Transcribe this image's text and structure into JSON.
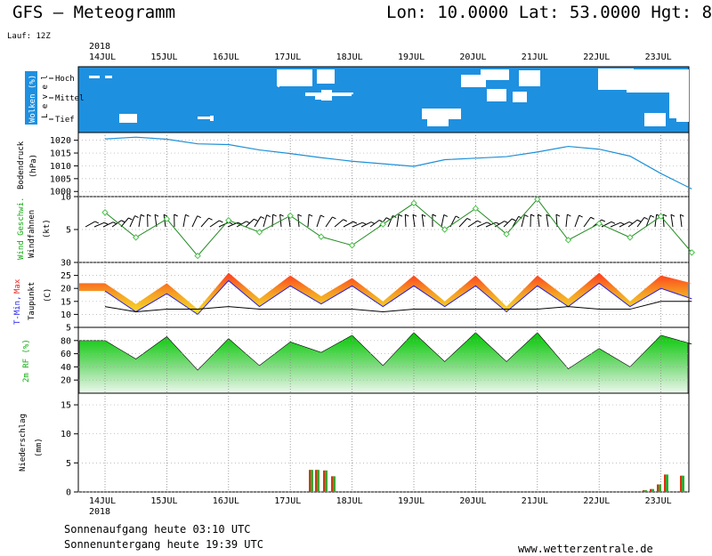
{
  "header": {
    "model": "GFS – Meteogramm",
    "location": "Lon: 10.0000  Lat: 53.0000  Hgt: 8",
    "run": "Lauf: 12Z",
    "year": "2018"
  },
  "days": [
    "14JUL",
    "15JUL",
    "16JUL",
    "17JUL",
    "18JUL",
    "19JUL",
    "20JUL",
    "21JUL",
    "22JUL",
    "23JUL"
  ],
  "panels": {
    "clouds": {
      "label": "Wolken (%)",
      "level_label": "L e v e l",
      "levels": [
        "Hoch",
        "Mittel",
        "Tief"
      ]
    },
    "pressure": {
      "label": "Bodendruck",
      "unit": "(hPa)",
      "ticks": [
        "1020",
        "1015",
        "1010",
        "1005",
        "1000"
      ]
    },
    "wind": {
      "label_speed": "Wind Geschwi.",
      "label_barbs": "Windfahnen",
      "unit": "(kt)",
      "ticks": [
        "10",
        "5"
      ]
    },
    "temperature": {
      "label_tmin": "T-Min,",
      "label_tmax": "Max",
      "label_dew": "Taupunkt",
      "unit": "(C)",
      "ticks": [
        "30",
        "25",
        "20",
        "15",
        "10",
        "5"
      ]
    },
    "humidity": {
      "label": "2m RF (%)",
      "ticks": [
        "80",
        "60",
        "40",
        "20"
      ]
    },
    "precipitation": {
      "label": "Niederschlag",
      "unit": "(mm)",
      "ticks": [
        "15",
        "10",
        "5",
        "0"
      ]
    }
  },
  "footer": {
    "sunrise": "Sonnenaufgang heute 03:10 UTC",
    "sunset": "Sonnenuntergang heute 19:39 UTC",
    "source": "www.wetterzentrale.de"
  },
  "colors": {
    "cloud_sky": "#1e90e0",
    "cloud_white": "#ffffff",
    "pressure_line": "#1e90d8",
    "wind_line": "#228b22",
    "wind_marker": "#4ec24e",
    "tmax_label": "#ee2222",
    "tmin_label": "#2222ee",
    "humidity_label": "#11aa11",
    "precip_red": "#dd3311",
    "precip_green": "#33aa33"
  },
  "chart_data": [
    {
      "type": "line",
      "title": "Bodendruck (hPa)",
      "x": [
        "14JUL 00",
        "14JUL 12",
        "15JUL 00",
        "15JUL 12",
        "16JUL 00",
        "16JUL 12",
        "17JUL 00",
        "17JUL 12",
        "18JUL 00",
        "18JUL 12",
        "19JUL 00",
        "19JUL 12",
        "20JUL 00",
        "20JUL 12",
        "21JUL 00",
        "21JUL 12",
        "22JUL 00",
        "22JUL 12",
        "23JUL 00",
        "23JUL 12"
      ],
      "series": [
        {
          "name": "Bodendruck",
          "values": [
            1020.5,
            1021.2,
            1020.4,
            1018.6,
            1018.3,
            1016.2,
            1014.8,
            1013.2,
            1011.8,
            1010.8,
            1009.8,
            1012.4,
            1013.0,
            1013.6,
            1015.4,
            1017.6,
            1016.5,
            1013.8,
            1007.0,
            1001.0
          ]
        }
      ],
      "ylim": [
        998,
        1023
      ]
    },
    {
      "type": "line",
      "title": "Wind Geschwi. (kt)",
      "x": [
        "14JUL 00",
        "14JUL 12",
        "15JUL 00",
        "15JUL 12",
        "16JUL 00",
        "16JUL 12",
        "17JUL 00",
        "17JUL 12",
        "18JUL 00",
        "18JUL 12",
        "19JUL 00",
        "19JUL 12",
        "20JUL 00",
        "20JUL 12",
        "21JUL 00",
        "21JUL 12",
        "22JUL 00",
        "22JUL 12",
        "23JUL 00",
        "23JUL 12"
      ],
      "series": [
        {
          "name": "Wind Geschwi.",
          "values": [
            7.6,
            3.8,
            6.6,
            1.0,
            6.4,
            4.6,
            7.1,
            3.9,
            2.6,
            5.8,
            9.0,
            5.0,
            8.2,
            4.3,
            9.6,
            3.4,
            5.9,
            3.8,
            7.0,
            1.5
          ]
        }
      ],
      "ylim": [
        0,
        10
      ]
    },
    {
      "type": "area",
      "title": "T-Min, Max / Taupunkt (C)",
      "x": [
        "14JUL 00",
        "14JUL 12",
        "15JUL 00",
        "15JUL 12",
        "16JUL 00",
        "16JUL 12",
        "17JUL 00",
        "17JUL 12",
        "18JUL 00",
        "18JUL 12",
        "19JUL 00",
        "19JUL 12",
        "20JUL 00",
        "20JUL 12",
        "21JUL 00",
        "21JUL 12",
        "22JUL 00",
        "22JUL 12",
        "23JUL 00",
        "23JUL 12"
      ],
      "series": [
        {
          "name": "Max",
          "values": [
            22,
            14,
            22,
            12,
            26,
            16,
            25,
            17,
            24,
            15,
            25,
            15,
            25,
            13,
            25,
            16,
            26,
            15,
            25,
            22
          ]
        },
        {
          "name": "T-Min",
          "values": [
            19,
            11,
            18,
            10,
            23,
            13,
            21,
            14,
            21,
            13,
            21,
            13,
            21,
            11,
            21,
            13,
            22,
            13,
            20,
            16
          ]
        },
        {
          "name": "Taupunkt",
          "values": [
            13,
            11,
            12,
            12,
            13,
            12,
            12,
            12,
            12,
            11,
            12,
            12,
            12,
            12,
            12,
            13,
            12,
            12,
            15,
            15
          ]
        }
      ],
      "ylim": [
        5,
        30
      ]
    },
    {
      "type": "area",
      "title": "2m RF (%)",
      "x": [
        "14JUL 00",
        "14JUL 12",
        "15JUL 00",
        "15JUL 12",
        "16JUL 00",
        "16JUL 12",
        "17JUL 00",
        "17JUL 12",
        "18JUL 00",
        "18JUL 12",
        "19JUL 00",
        "19JUL 12",
        "20JUL 00",
        "20JUL 12",
        "21JUL 00",
        "21JUL 12",
        "22JUL 00",
        "22JUL 12",
        "23JUL 00",
        "23JUL 12"
      ],
      "series": [
        {
          "name": "2m RF",
          "values": [
            80,
            52,
            86,
            35,
            83,
            42,
            78,
            62,
            88,
            42,
            92,
            48,
            92,
            48,
            92,
            37,
            68,
            40,
            88,
            75
          ]
        }
      ],
      "ylim": [
        0,
        100
      ]
    },
    {
      "type": "bar",
      "title": "Niederschlag (mm)",
      "x": [
        "17JUL 12",
        "17JUL 15",
        "17JUL 18",
        "17JUL 21",
        "23JUL 00",
        "23JUL 03",
        "23JUL 06",
        "23JUL 09",
        "23JUL 12"
      ],
      "values": [
        3.8,
        3.8,
        3.7,
        2.7,
        0.3,
        0.5,
        1.3,
        3.0,
        2.8
      ],
      "ylim": [
        0,
        17
      ]
    }
  ]
}
